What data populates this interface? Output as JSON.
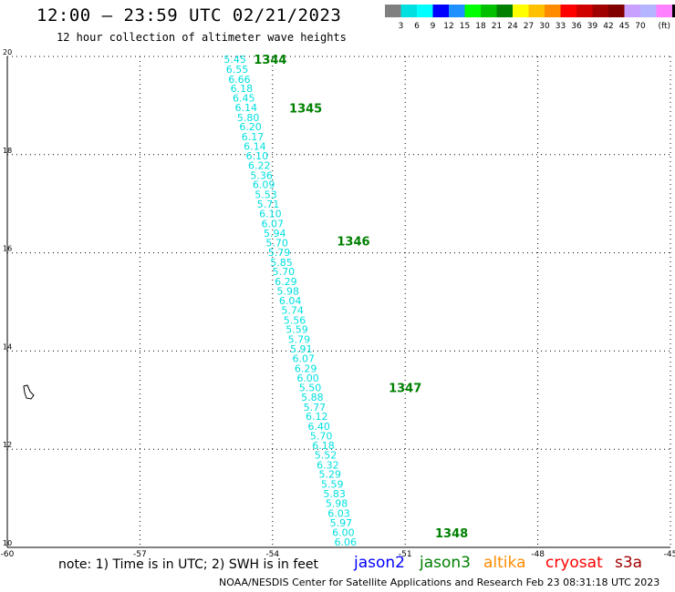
{
  "header": {
    "title": "12:00 – 23:59 UTC 02/21/2023",
    "subtitle": "12 hour collection of altimeter wave heights"
  },
  "colorbar": {
    "colors": [
      "#808080",
      "#00e0e0",
      "#00ffff",
      "#0000ff",
      "#1e90ff",
      "#00ff00",
      "#00c000",
      "#008000",
      "#ffff00",
      "#ffc000",
      "#ff8c00",
      "#ff0000",
      "#d00000",
      "#a00000",
      "#800000",
      "#c8a0ff",
      "#b4b4ff",
      "#ff80ff",
      "#000000"
    ],
    "labels": [
      "3",
      "6",
      "9",
      "12",
      "15",
      "18",
      "21",
      "24",
      "27",
      "30",
      "33",
      "36",
      "39",
      "42",
      "45",
      "70"
    ],
    "unit": "(ft)"
  },
  "chart_data": {
    "type": "scatter",
    "title": "12:00 – 23:59 UTC 02/21/2023",
    "subtitle": "12 hour collection of altimeter wave heights",
    "xlim": [
      -60,
      -45
    ],
    "ylim": [
      10,
      20
    ],
    "x_ticks": [
      "-60",
      "-57",
      "-54",
      "-51",
      "-48",
      "-45"
    ],
    "y_ticks": [
      "20",
      "18",
      "16",
      "14",
      "12",
      "10"
    ],
    "grid": true,
    "wave_heights_ft": [
      {
        "lon": -54.85,
        "lat": 19.94,
        "swh": "5.45"
      },
      {
        "lon": -54.8,
        "lat": 19.74,
        "swh": "6.55"
      },
      {
        "lon": -54.75,
        "lat": 19.54,
        "swh": "6.66"
      },
      {
        "lon": -54.7,
        "lat": 19.35,
        "swh": "6.18"
      },
      {
        "lon": -54.65,
        "lat": 19.16,
        "swh": "6.45"
      },
      {
        "lon": -54.6,
        "lat": 18.96,
        "swh": "6.14"
      },
      {
        "lon": -54.55,
        "lat": 18.76,
        "swh": "5.80"
      },
      {
        "lon": -54.5,
        "lat": 18.57,
        "swh": "6.20"
      },
      {
        "lon": -54.45,
        "lat": 18.37,
        "swh": "6.17"
      },
      {
        "lon": -54.4,
        "lat": 18.17,
        "swh": "6.14"
      },
      {
        "lon": -54.35,
        "lat": 17.98,
        "swh": "6.10"
      },
      {
        "lon": -54.3,
        "lat": 17.78,
        "swh": "6.22"
      },
      {
        "lon": -54.25,
        "lat": 17.58,
        "swh": "5.36"
      },
      {
        "lon": -54.2,
        "lat": 17.39,
        "swh": "6.09"
      },
      {
        "lon": -54.15,
        "lat": 17.19,
        "swh": "5.53"
      },
      {
        "lon": -54.1,
        "lat": 16.99,
        "swh": "5.71"
      },
      {
        "lon": -54.05,
        "lat": 16.8,
        "swh": "6.10"
      },
      {
        "lon": -54.0,
        "lat": 16.6,
        "swh": "6.07"
      },
      {
        "lon": -53.95,
        "lat": 16.4,
        "swh": "5.94"
      },
      {
        "lon": -53.9,
        "lat": 16.21,
        "swh": "5.70"
      },
      {
        "lon": -53.85,
        "lat": 16.01,
        "swh": "5.79"
      },
      {
        "lon": -53.8,
        "lat": 15.81,
        "swh": "5.85"
      },
      {
        "lon": -53.75,
        "lat": 15.62,
        "swh": "5.70"
      },
      {
        "lon": -53.7,
        "lat": 15.42,
        "swh": "6.29"
      },
      {
        "lon": -53.65,
        "lat": 15.22,
        "swh": "5.98"
      },
      {
        "lon": -53.6,
        "lat": 15.03,
        "swh": "6.04"
      },
      {
        "lon": -53.55,
        "lat": 14.83,
        "swh": "5.74"
      },
      {
        "lon": -53.5,
        "lat": 14.63,
        "swh": "5.56"
      },
      {
        "lon": -53.45,
        "lat": 14.44,
        "swh": "5.59"
      },
      {
        "lon": -53.4,
        "lat": 14.24,
        "swh": "5.79"
      },
      {
        "lon": -53.35,
        "lat": 14.04,
        "swh": "5.91"
      },
      {
        "lon": -53.3,
        "lat": 13.85,
        "swh": "6.07"
      },
      {
        "lon": -53.25,
        "lat": 13.65,
        "swh": "6.29"
      },
      {
        "lon": -53.2,
        "lat": 13.45,
        "swh": "6.00"
      },
      {
        "lon": -53.15,
        "lat": 13.26,
        "swh": "5.50"
      },
      {
        "lon": -53.1,
        "lat": 13.06,
        "swh": "5.88"
      },
      {
        "lon": -53.05,
        "lat": 12.86,
        "swh": "5.77"
      },
      {
        "lon": -53.0,
        "lat": 12.67,
        "swh": "6.12"
      },
      {
        "lon": -52.95,
        "lat": 12.47,
        "swh": "6.40"
      },
      {
        "lon": -52.9,
        "lat": 12.27,
        "swh": "5.70"
      },
      {
        "lon": -52.85,
        "lat": 12.08,
        "swh": "6.18"
      },
      {
        "lon": -52.8,
        "lat": 11.88,
        "swh": "5.52"
      },
      {
        "lon": -52.75,
        "lat": 11.68,
        "swh": "6.32"
      },
      {
        "lon": -52.7,
        "lat": 11.49,
        "swh": "5.29"
      },
      {
        "lon": -52.65,
        "lat": 11.29,
        "swh": "5.59"
      },
      {
        "lon": -52.6,
        "lat": 11.09,
        "swh": "5.83"
      },
      {
        "lon": -52.55,
        "lat": 10.9,
        "swh": "5.98"
      },
      {
        "lon": -52.5,
        "lat": 10.7,
        "swh": "6.03"
      },
      {
        "lon": -52.45,
        "lat": 10.5,
        "swh": "5.97"
      },
      {
        "lon": -52.4,
        "lat": 10.31,
        "swh": "6.00"
      },
      {
        "lon": -52.35,
        "lat": 10.11,
        "swh": "6.06"
      }
    ],
    "pass_labels": [
      {
        "text": "1344",
        "lon": -54.05,
        "lat": 19.94
      },
      {
        "text": "1345",
        "lon": -53.25,
        "lat": 18.95
      },
      {
        "text": "1346",
        "lon": -52.17,
        "lat": 16.24
      },
      {
        "text": "1347",
        "lon": -51.0,
        "lat": 13.26
      },
      {
        "text": "1348",
        "lon": -49.95,
        "lat": 10.3
      }
    ],
    "point_color": "#00e0e0",
    "pass_label_color": "#008000"
  },
  "footer": {
    "note": "note:  1) Time is in UTC;  2) SWH is in feet",
    "satellites": [
      {
        "name": "jason2",
        "color": "#0000ff"
      },
      {
        "name": "jason3",
        "color": "#008000"
      },
      {
        "name": "altika",
        "color": "#ff8c00"
      },
      {
        "name": "cryosat",
        "color": "#ff0000"
      },
      {
        "name": "s3a",
        "color": "#a00000"
      }
    ],
    "credit": "NOAA/NESDIS Center for Satellite Applications and Research     Feb 23 08:31:18 UTC 2023"
  }
}
